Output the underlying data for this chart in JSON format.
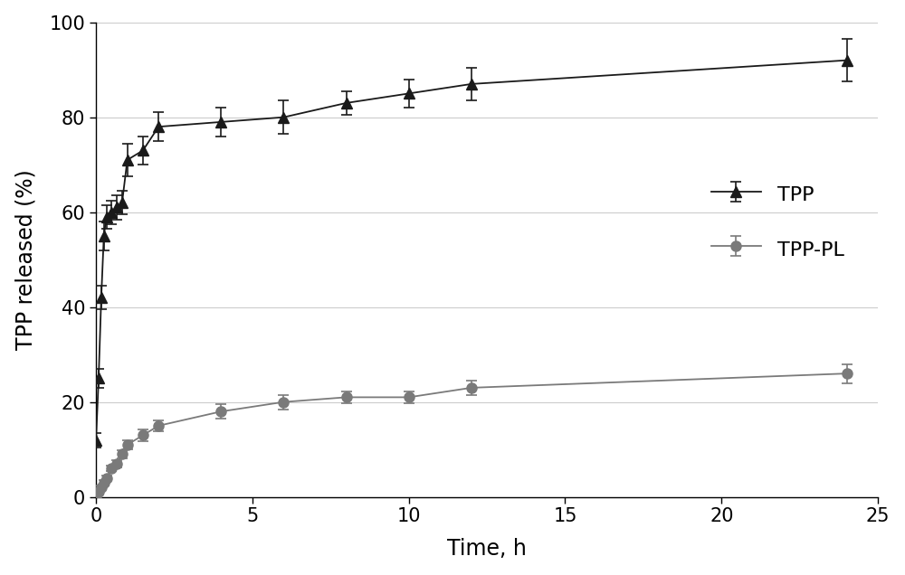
{
  "tpp_x": [
    0,
    0.083,
    0.167,
    0.25,
    0.333,
    0.5,
    0.667,
    0.833,
    1.0,
    1.5,
    2.0,
    4.0,
    6.0,
    8.0,
    10.0,
    12.0,
    24.0
  ],
  "tpp_y": [
    12,
    25,
    42,
    55,
    59,
    60,
    61,
    62,
    71,
    73,
    78,
    79,
    80,
    83,
    85,
    87,
    92
  ],
  "tpp_err": [
    1.5,
    2.0,
    2.5,
    3.0,
    2.5,
    2.5,
    2.5,
    2.5,
    3.5,
    3.0,
    3.0,
    3.0,
    3.5,
    2.5,
    3.0,
    3.5,
    4.5
  ],
  "tpppl_x": [
    0,
    0.083,
    0.167,
    0.25,
    0.333,
    0.5,
    0.667,
    0.833,
    1.0,
    1.5,
    2.0,
    4.0,
    6.0,
    8.0,
    10.0,
    12.0,
    24.0
  ],
  "tpppl_y": [
    0,
    1,
    2,
    3,
    4,
    6,
    7,
    9,
    11,
    13,
    15,
    18,
    20,
    21,
    21,
    23,
    26
  ],
  "tpppl_err": [
    0.3,
    0.4,
    0.4,
    0.5,
    0.5,
    0.6,
    0.7,
    0.8,
    1.0,
    1.2,
    1.2,
    1.5,
    1.5,
    1.2,
    1.2,
    1.5,
    2.0
  ],
  "xlabel": "Time, h",
  "ylabel": "TPP released (%)",
  "xlim": [
    0,
    25
  ],
  "ylim": [
    0,
    100
  ],
  "xticks": [
    0,
    5,
    10,
    15,
    20,
    25
  ],
  "yticks": [
    0,
    20,
    40,
    60,
    80,
    100
  ],
  "tpp_color": "#1a1a1a",
  "tpppl_color": "#7a7a7a",
  "legend_labels": [
    "TPP",
    "TPP-PL"
  ],
  "background_color": "#ffffff"
}
